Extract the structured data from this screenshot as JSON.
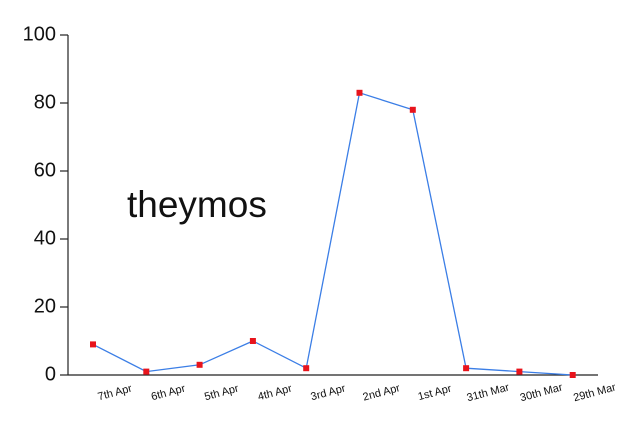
{
  "chart_data": {
    "type": "line",
    "annotation": "theymos",
    "categories": [
      "7th Apr",
      "6th Apr",
      "5th Apr",
      "4th Apr",
      "3rd Apr",
      "2nd Apr",
      "1st Apr",
      "31th Mar",
      "30th Mar",
      "29th Mar"
    ],
    "series": [
      {
        "color": "#3b7ee6",
        "marker_color": "#e8141c",
        "values": [
          9,
          1,
          3,
          10,
          2,
          83,
          78,
          2,
          1,
          0
        ]
      }
    ],
    "ylim": [
      0,
      100
    ],
    "yticks": [
      0,
      20,
      40,
      60,
      80,
      100
    ],
    "annotation_color": "#d41fb8"
  }
}
